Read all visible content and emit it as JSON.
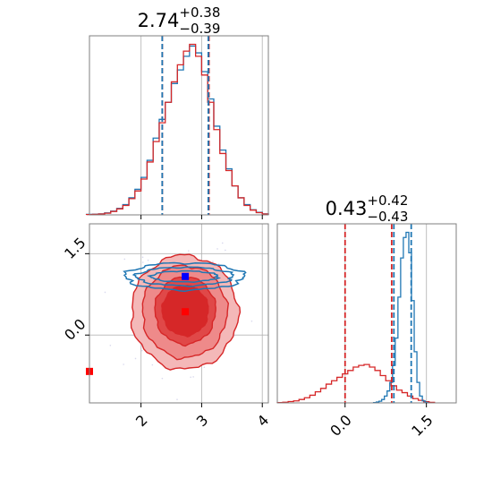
{
  "chart_data": {
    "type": "corner",
    "colors": {
      "red": "#d62728",
      "blue": "#1f77b4"
    },
    "panels": [
      {
        "id": "p1-marginal",
        "type": "histogram",
        "title": {
          "value": "2.74",
          "plus": "+0.38",
          "minus": "−0.39"
        },
        "xlim": [
          1.15,
          4.1
        ],
        "grid_x": [
          2,
          3,
          4
        ],
        "vlines": [
          {
            "x": 2.35,
            "color": "red"
          },
          {
            "x": 2.35,
            "color": "blue"
          },
          {
            "x": 3.12,
            "color": "red"
          },
          {
            "x": 3.11,
            "color": "blue"
          }
        ],
        "series": [
          {
            "name": "",
            "color": "blue",
            "x": [
              1.15,
              1.25,
              1.35,
              1.45,
              1.55,
              1.65,
              1.75,
              1.85,
              1.95,
              2.05,
              2.15,
              2.25,
              2.35,
              2.45,
              2.55,
              2.65,
              2.75,
              2.85,
              2.95,
              3.05,
              3.15,
              3.25,
              3.35,
              3.45,
              3.55,
              3.65,
              3.75,
              3.85,
              3.95,
              4.05
            ],
            "y": [
              0.003,
              0.004,
              0.006,
              0.012,
              0.022,
              0.038,
              0.06,
              0.1,
              0.15,
              0.22,
              0.32,
              0.45,
              0.56,
              0.66,
              0.77,
              0.85,
              0.93,
              0.99,
              0.95,
              0.84,
              0.68,
              0.52,
              0.38,
              0.27,
              0.17,
              0.1,
              0.06,
              0.03,
              0.015,
              0.006
            ]
          },
          {
            "name": "",
            "color": "red",
            "x": [
              1.15,
              1.25,
              1.35,
              1.45,
              1.55,
              1.65,
              1.75,
              1.85,
              1.95,
              2.05,
              2.15,
              2.25,
              2.35,
              2.45,
              2.55,
              2.65,
              2.75,
              2.85,
              2.95,
              3.05,
              3.15,
              3.25,
              3.35,
              3.45,
              3.55,
              3.65,
              3.75,
              3.85,
              3.95,
              4.05
            ],
            "y": [
              0.002,
              0.003,
              0.005,
              0.01,
              0.02,
              0.035,
              0.055,
              0.095,
              0.14,
              0.21,
              0.31,
              0.43,
              0.54,
              0.66,
              0.78,
              0.88,
              0.96,
              1.0,
              0.93,
              0.82,
              0.66,
              0.5,
              0.36,
              0.26,
              0.17,
              0.1,
              0.055,
              0.028,
              0.013,
              0.005
            ]
          }
        ]
      },
      {
        "id": "p2-joint",
        "type": "contour",
        "xlim": [
          1.15,
          4.1
        ],
        "ylim": [
          -1.25,
          2.05
        ],
        "xticks": [
          2,
          3,
          4
        ],
        "xtick_labels": [
          "2",
          "3",
          "4"
        ],
        "yticks": [
          0.0,
          1.5
        ],
        "ytick_labels": [
          "0.0",
          "1.5"
        ],
        "markers": [
          {
            "x": 2.73,
            "y": 1.08,
            "color": "blue"
          },
          {
            "x": 2.73,
            "y": 0.43,
            "color": "red"
          },
          {
            "x": 1.15,
            "y": -0.67,
            "color": "red"
          }
        ],
        "red_contours": [
          {
            "cx": 2.72,
            "cy": 0.42,
            "rx": 0.88,
            "ry": 1.05,
            "fill": "#f4b8b8"
          },
          {
            "cx": 2.72,
            "cy": 0.43,
            "rx": 0.7,
            "ry": 0.85,
            "fill": "#ee8a8a"
          },
          {
            "cx": 2.73,
            "cy": 0.45,
            "rx": 0.5,
            "ry": 0.62,
            "fill": "#e04848"
          },
          {
            "cx": 2.73,
            "cy": 0.45,
            "rx": 0.38,
            "ry": 0.46,
            "fill": "#d62728"
          }
        ],
        "blue_contours": [
          {
            "cx": 2.72,
            "cy": 1.08,
            "rx": 0.98,
            "ry": 0.25
          },
          {
            "cx": 2.72,
            "cy": 1.08,
            "rx": 0.8,
            "ry": 0.17
          },
          {
            "cx": 2.72,
            "cy": 1.08,
            "rx": 0.55,
            "ry": 0.1
          }
        ]
      },
      {
        "id": "p3-marginal",
        "type": "histogram",
        "title": {
          "value": "0.43",
          "plus": "+0.42",
          "minus": "−0.43"
        },
        "xlim": [
          -1.25,
          2.05
        ],
        "xticks": [
          0.0,
          1.5
        ],
        "xtick_labels": [
          "0.0",
          "1.5"
        ],
        "grid_x": [
          0.0,
          1.5
        ],
        "vlines": [
          {
            "x": 0.0,
            "color": "red"
          },
          {
            "x": 0.86,
            "color": "red"
          },
          {
            "x": 0.9,
            "color": "blue"
          },
          {
            "x": 1.22,
            "color": "blue"
          }
        ],
        "series": [
          {
            "name": "",
            "color": "red",
            "x": [
              -1.2,
              -1.1,
              -1.0,
              -0.9,
              -0.8,
              -0.7,
              -0.6,
              -0.5,
              -0.4,
              -0.3,
              -0.2,
              -0.1,
              0.0,
              0.1,
              0.2,
              0.3,
              0.4,
              0.5,
              0.6,
              0.7,
              0.8,
              0.9,
              1.0,
              1.1,
              1.2,
              1.3,
              1.4,
              1.5,
              1.6
            ],
            "y": [
              0.002,
              0.004,
              0.008,
              0.012,
              0.02,
              0.03,
              0.045,
              0.065,
              0.085,
              0.11,
              0.13,
              0.15,
              0.17,
              0.19,
              0.21,
              0.22,
              0.225,
              0.21,
              0.19,
              0.16,
              0.13,
              0.1,
              0.075,
              0.06,
              0.04,
              0.025,
              0.015,
              0.007,
              0.003
            ]
          },
          {
            "name": "",
            "color": "blue",
            "x": [
              0.55,
              0.6,
              0.65,
              0.7,
              0.75,
              0.8,
              0.85,
              0.9,
              0.95,
              1.0,
              1.05,
              1.1,
              1.15,
              1.2,
              1.25,
              1.3,
              1.35,
              1.4,
              1.45,
              1.5
            ],
            "y": [
              0.002,
              0.005,
              0.01,
              0.02,
              0.04,
              0.07,
              0.12,
              0.22,
              0.38,
              0.62,
              0.85,
              0.97,
              1.0,
              0.88,
              0.6,
              0.3,
              0.12,
              0.04,
              0.012,
              0.003
            ]
          }
        ]
      }
    ]
  }
}
